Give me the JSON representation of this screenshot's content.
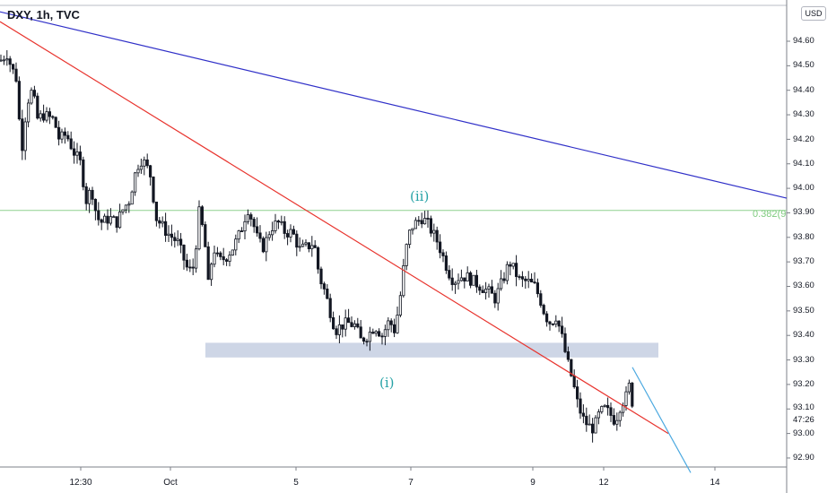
{
  "symbol": "DXY, 1h, TVC",
  "currency": "USD",
  "price_axis_labels": {
    "p9460": "94.60",
    "p9450": "94.50",
    "p9440": "94.40",
    "p9430": "94.30",
    "p9420": "94.20",
    "p9410": "94.10",
    "p9400": "94.00",
    "p9390": "93.90",
    "p9380": "93.80",
    "p9370": "93.70",
    "p9360": "93.60",
    "p9350": "93.50",
    "p9340": "93.40",
    "p9330": "93.30",
    "p9320": "93.20",
    "p9310": "93.10",
    "p9300": "93.00",
    "p9290": "92.90"
  },
  "countdown": "47:26",
  "time_axis_labels": [
    "12:30",
    "Oct",
    "5",
    "7",
    "9",
    "12",
    "14"
  ],
  "wave_labels": {
    "wave_ii": "(ii)",
    "wave_i": "(i)"
  },
  "fib_label": "0.382(9",
  "colors": {
    "candle": "#131722",
    "downtrend_line": "#e8342e",
    "channel_line": "#3030c8",
    "fib_line": "#8fd18f",
    "support_zone": "#ced6e6",
    "projection_line": "#4aa8e0",
    "wave_label": "#26a2a6"
  },
  "chart_data": {
    "type": "candlestick",
    "title": "DXY, 1h, TVC",
    "ylim": [
      92.84,
      94.74
    ],
    "y_ticks": [
      92.9,
      93.0,
      93.1,
      93.2,
      93.3,
      93.4,
      93.5,
      93.6,
      93.7,
      93.8,
      93.9,
      94.0,
      94.1,
      94.2,
      94.3,
      94.4,
      94.5,
      94.6
    ],
    "x_ticks": [
      "12:30",
      "Oct",
      "5",
      "7",
      "9",
      "12",
      "14"
    ],
    "price_path": [
      [
        0,
        94.52
      ],
      [
        8,
        94.55
      ],
      [
        12,
        94.5
      ],
      [
        18,
        94.45
      ],
      [
        24,
        94.15
      ],
      [
        30,
        94.35
      ],
      [
        36,
        94.4
      ],
      [
        42,
        94.28
      ],
      [
        48,
        94.3
      ],
      [
        60,
        94.28
      ],
      [
        66,
        94.2
      ],
      [
        74,
        94.22
      ],
      [
        82,
        94.15
      ],
      [
        90,
        94.1
      ],
      [
        96,
        93.95
      ],
      [
        102,
        94.0
      ],
      [
        108,
        93.88
      ],
      [
        114,
        93.86
      ],
      [
        122,
        93.88
      ],
      [
        130,
        93.86
      ],
      [
        138,
        93.92
      ],
      [
        144,
        93.95
      ],
      [
        150,
        94.05
      ],
      [
        156,
        94.12
      ],
      [
        162,
        94.1
      ],
      [
        168,
        94.05
      ],
      [
        174,
        93.88
      ],
      [
        180,
        93.85
      ],
      [
        186,
        93.82
      ],
      [
        192,
        93.8
      ],
      [
        198,
        93.78
      ],
      [
        204,
        93.72
      ],
      [
        210,
        93.66
      ],
      [
        216,
        93.68
      ],
      [
        222,
        93.9
      ],
      [
        228,
        93.8
      ],
      [
        232,
        93.6
      ],
      [
        238,
        93.76
      ],
      [
        244,
        93.7
      ],
      [
        252,
        93.72
      ],
      [
        260,
        93.76
      ],
      [
        268,
        93.82
      ],
      [
        276,
        93.92
      ],
      [
        282,
        93.86
      ],
      [
        288,
        93.78
      ],
      [
        294,
        93.76
      ],
      [
        302,
        93.84
      ],
      [
        310,
        93.86
      ],
      [
        318,
        93.82
      ],
      [
        326,
        93.82
      ],
      [
        334,
        93.75
      ],
      [
        342,
        93.76
      ],
      [
        350,
        93.78
      ],
      [
        356,
        93.64
      ],
      [
        362,
        93.58
      ],
      [
        368,
        93.5
      ],
      [
        374,
        93.42
      ],
      [
        380,
        93.44
      ],
      [
        388,
        93.45
      ],
      [
        396,
        93.44
      ],
      [
        402,
        93.38
      ],
      [
        410,
        93.4
      ],
      [
        418,
        93.44
      ],
      [
        426,
        93.4
      ],
      [
        434,
        93.46
      ],
      [
        440,
        93.42
      ],
      [
        446,
        93.55
      ],
      [
        452,
        93.74
      ],
      [
        458,
        93.84
      ],
      [
        464,
        93.86
      ],
      [
        470,
        93.88
      ],
      [
        476,
        93.86
      ],
      [
        482,
        93.82
      ],
      [
        488,
        93.78
      ],
      [
        494,
        93.72
      ],
      [
        500,
        93.66
      ],
      [
        506,
        93.62
      ],
      [
        512,
        93.64
      ],
      [
        520,
        93.64
      ],
      [
        528,
        93.62
      ],
      [
        536,
        93.6
      ],
      [
        544,
        93.58
      ],
      [
        552,
        93.55
      ],
      [
        560,
        93.62
      ],
      [
        568,
        93.7
      ],
      [
        574,
        93.66
      ],
      [
        580,
        93.62
      ],
      [
        588,
        93.62
      ],
      [
        596,
        93.6
      ],
      [
        602,
        93.55
      ],
      [
        608,
        93.48
      ],
      [
        614,
        93.45
      ],
      [
        620,
        93.48
      ],
      [
        626,
        93.4
      ],
      [
        632,
        93.3
      ],
      [
        638,
        93.22
      ],
      [
        644,
        93.12
      ],
      [
        650,
        93.06
      ],
      [
        656,
        93.03
      ],
      [
        662,
        93.02
      ],
      [
        668,
        93.08
      ],
      [
        674,
        93.1
      ],
      [
        680,
        93.08
      ],
      [
        686,
        93.05
      ],
      [
        692,
        93.12
      ],
      [
        698,
        93.15
      ],
      [
        702,
        93.2
      ],
      [
        706,
        93.1
      ]
    ],
    "trend_lines": [
      {
        "kind": "downtrend",
        "from": [
          0,
          94.68
        ],
        "to": [
          745,
          93.0
        ]
      },
      {
        "kind": "channel",
        "from": [
          0,
          94.72
        ],
        "to": [
          877,
          93.96
        ]
      },
      {
        "kind": "projection",
        "from": [
          705,
          93.27
        ],
        "to": [
          770,
          92.84
        ]
      }
    ],
    "horizontal_levels": [
      {
        "label": "0.382",
        "price": 93.91
      }
    ],
    "zones": [
      {
        "label": "support",
        "price_top": 93.37,
        "price_bottom": 93.31
      }
    ],
    "annotations": [
      {
        "text": "(ii)",
        "price": 93.97
      },
      {
        "text": "(i)",
        "price": 93.17
      }
    ]
  }
}
